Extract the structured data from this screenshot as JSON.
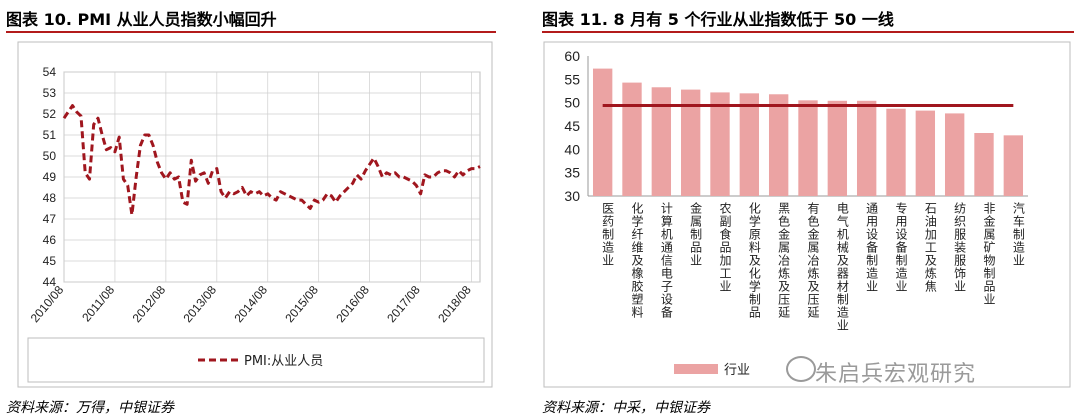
{
  "left": {
    "title": "图表 10. PMI 从业人员指数小幅回升",
    "source": "资料来源：万得，中银证券",
    "chart_data": {
      "type": "line",
      "ylim": [
        44,
        54
      ],
      "yticks": [
        "44",
        "45",
        "46",
        "47",
        "48",
        "49",
        "50",
        "51",
        "52",
        "53",
        "54"
      ],
      "xticks": [
        "2010/08",
        "2011/08",
        "2012/08",
        "2013/08",
        "2014/08",
        "2015/08",
        "2016/08",
        "2017/08",
        "2018/08"
      ],
      "series": [
        {
          "name": "PMI:从业人员",
          "color": "#a0161e",
          "x": [
            "2010-08",
            "2010-09",
            "2010-10",
            "2010-11",
            "2010-12",
            "2011-01",
            "2011-02",
            "2011-03",
            "2011-04",
            "2011-05",
            "2011-06",
            "2011-07",
            "2011-08",
            "2011-09",
            "2011-10",
            "2011-11",
            "2011-12",
            "2012-01",
            "2012-02",
            "2012-03",
            "2012-04",
            "2012-05",
            "2012-06",
            "2012-07",
            "2012-08",
            "2012-09",
            "2012-10",
            "2012-11",
            "2012-12",
            "2013-01",
            "2013-02",
            "2013-03",
            "2013-04",
            "2013-05",
            "2013-06",
            "2013-07",
            "2013-08",
            "2013-09",
            "2013-10",
            "2013-11",
            "2013-12",
            "2014-01",
            "2014-02",
            "2014-03",
            "2014-04",
            "2014-05",
            "2014-06",
            "2014-07",
            "2014-08",
            "2014-09",
            "2014-10",
            "2014-11",
            "2014-12",
            "2015-01",
            "2015-02",
            "2015-03",
            "2015-04",
            "2015-05",
            "2015-06",
            "2015-07",
            "2015-08",
            "2015-09",
            "2015-10",
            "2015-11",
            "2015-12",
            "2016-01",
            "2016-02",
            "2016-03",
            "2016-04",
            "2016-05",
            "2016-06",
            "2016-07",
            "2016-08",
            "2016-09",
            "2016-10",
            "2016-11",
            "2016-12",
            "2017-01",
            "2017-02",
            "2017-03",
            "2017-04",
            "2017-05",
            "2017-06",
            "2017-07",
            "2017-08",
            "2017-09",
            "2017-10",
            "2017-11",
            "2017-12",
            "2018-01",
            "2018-02",
            "2018-03",
            "2018-04",
            "2018-05",
            "2018-06",
            "2018-07",
            "2018-08",
            "2018-09",
            "2018-10"
          ],
          "values": [
            51.8,
            52.1,
            52.4,
            52.1,
            51.9,
            49.2,
            48.9,
            51.5,
            51.8,
            51.0,
            50.3,
            50.4,
            50.2,
            50.9,
            48.9,
            48.6,
            47.2,
            49.0,
            50.5,
            51.0,
            51.0,
            50.5,
            49.7,
            49.2,
            48.9,
            49.2,
            48.9,
            49.0,
            47.8,
            47.7,
            49.8,
            48.8,
            49.1,
            49.2,
            48.7,
            49.3,
            49.4,
            48.3,
            48.0,
            48.3,
            48.2,
            48.3,
            48.5,
            48.1,
            48.3,
            48.2,
            48.3,
            48.1,
            48.2,
            48.0,
            47.9,
            48.3,
            48.2,
            48.1,
            48.0,
            47.9,
            47.9,
            47.7,
            47.5,
            47.9,
            47.8,
            47.9,
            48.2,
            48.1,
            47.8,
            48.1,
            48.3,
            48.5,
            48.7,
            49.1,
            48.9,
            49.3,
            49.6,
            49.9,
            49.5,
            49.0,
            49.2,
            49.1,
            49.2,
            49.0,
            49.0,
            48.9,
            48.8,
            48.6,
            48.2,
            49.1,
            49.0,
            49.0,
            49.2,
            49.3,
            49.3,
            49.2,
            49.0,
            49.3,
            49.1,
            49.3,
            49.4,
            49.4,
            49.5
          ]
        }
      ]
    }
  },
  "right": {
    "title": "图表 11. 8 月有 5 个行业从业指数低于 50 一线",
    "source": "资料来源：中采，中银证券",
    "chart_data": {
      "type": "bar",
      "ylim": [
        30,
        60
      ],
      "yticks": [
        "30",
        "35",
        "40",
        "45",
        "50",
        "55",
        "60"
      ],
      "categories": [
        "医药制造业",
        "化学纤维及橡胶塑料",
        "计算机通信电子设备",
        "金属制品业",
        "农副食品加工业",
        "化学原料及化学制品",
        "黑色金属冶炼及压延",
        "有色金属冶炼及压延",
        "电气机械及器材制造业",
        "通用设备制造业",
        "专用设备制造业",
        "石油加工及炼焦",
        "纺织服装服饰业",
        "非金属矿物制品业",
        "汽车制造业"
      ],
      "values": [
        57.3,
        54.3,
        53.3,
        52.8,
        52.2,
        52.0,
        51.8,
        50.5,
        50.4,
        50.4,
        48.7,
        48.3,
        47.7,
        43.5,
        43.0
      ],
      "reference_line": 49.4,
      "legend": [
        "行业"
      ],
      "bar_color": "#eba3a3",
      "line_color": "#a0161e"
    }
  },
  "watermark": "朱启兵宏观研究"
}
